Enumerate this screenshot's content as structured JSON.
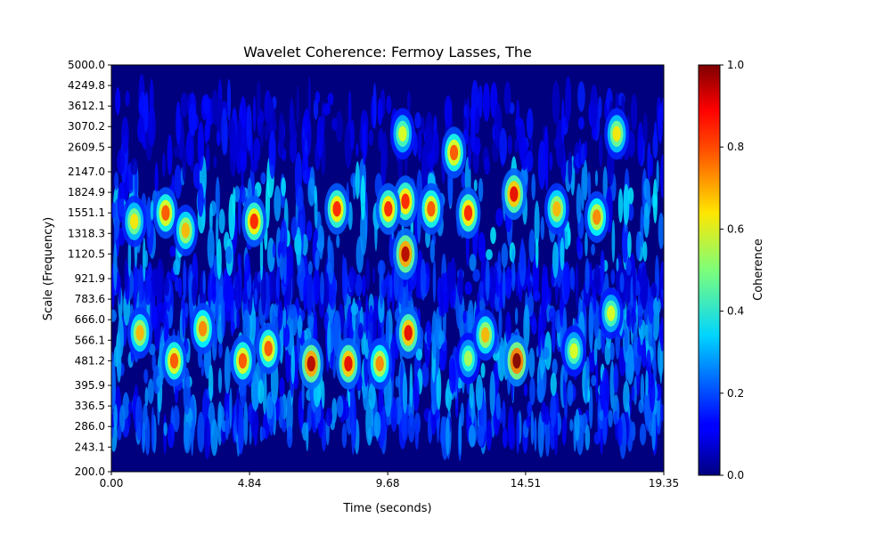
{
  "chart_data": {
    "type": "heatmap",
    "title": "Wavelet Coherence: Fermoy Lasses, The",
    "xlabel": "Time (seconds)",
    "ylabel": "Scale (Frequency)",
    "xlim": [
      0,
      19.35
    ],
    "ylim": [
      200,
      5000
    ],
    "y_scale": "log",
    "x_ticks": [
      "0.00",
      "4.84",
      "9.68",
      "14.51",
      "19.35"
    ],
    "y_ticks": [
      "200.0",
      "243.1",
      "286.0",
      "336.5",
      "395.9",
      "481.2",
      "566.1",
      "666.0",
      "783.6",
      "921.9",
      "1120.5",
      "1318.3",
      "1551.1",
      "1824.9",
      "2147.0",
      "2609.5",
      "3070.2",
      "3612.1",
      "4249.8",
      "5000.0"
    ],
    "colormap": "jet",
    "colorbar": {
      "label": "Coherence",
      "range": [
        0,
        1
      ],
      "ticks": [
        "0.0",
        "0.2",
        "0.4",
        "0.6",
        "0.8",
        "1.0"
      ]
    },
    "hotspots": [
      {
        "time": 10.3,
        "scale": 1120,
        "value": 0.95
      },
      {
        "time": 10.3,
        "scale": 1700,
        "value": 0.85
      },
      {
        "time": 10.4,
        "scale": 600,
        "value": 0.9
      },
      {
        "time": 14.2,
        "scale": 481,
        "value": 1.0
      },
      {
        "time": 14.1,
        "scale": 1800,
        "value": 0.9
      },
      {
        "time": 7.0,
        "scale": 470,
        "value": 0.95
      },
      {
        "time": 8.3,
        "scale": 470,
        "value": 0.9
      },
      {
        "time": 9.7,
        "scale": 1600,
        "value": 0.85
      },
      {
        "time": 12.5,
        "scale": 490,
        "value": 0.55
      },
      {
        "time": 12.0,
        "scale": 2500,
        "value": 0.8
      },
      {
        "time": 12.5,
        "scale": 1550,
        "value": 0.85
      },
      {
        "time": 17.5,
        "scale": 700,
        "value": 0.6
      },
      {
        "time": 5.0,
        "scale": 1450,
        "value": 0.85
      },
      {
        "time": 1.9,
        "scale": 1550,
        "value": 0.8
      },
      {
        "time": 1.0,
        "scale": 600,
        "value": 0.7
      },
      {
        "time": 2.2,
        "scale": 481,
        "value": 0.8
      },
      {
        "time": 7.9,
        "scale": 1600,
        "value": 0.85
      },
      {
        "time": 4.6,
        "scale": 481,
        "value": 0.8
      },
      {
        "time": 5.5,
        "scale": 530,
        "value": 0.8
      },
      {
        "time": 9.4,
        "scale": 470,
        "value": 0.75
      },
      {
        "time": 3.2,
        "scale": 620,
        "value": 0.75
      },
      {
        "time": 13.1,
        "scale": 590,
        "value": 0.7
      },
      {
        "time": 15.6,
        "scale": 1600,
        "value": 0.7
      },
      {
        "time": 17.0,
        "scale": 1500,
        "value": 0.75
      },
      {
        "time": 17.7,
        "scale": 2900,
        "value": 0.65
      },
      {
        "time": 10.2,
        "scale": 2900,
        "value": 0.6
      },
      {
        "time": 16.2,
        "scale": 520,
        "value": 0.6
      },
      {
        "time": 0.8,
        "scale": 1450,
        "value": 0.65
      },
      {
        "time": 2.6,
        "scale": 1350,
        "value": 0.7
      },
      {
        "time": 11.2,
        "scale": 1600,
        "value": 0.8
      }
    ]
  }
}
